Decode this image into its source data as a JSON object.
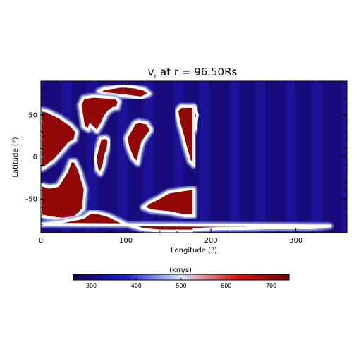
{
  "chart_data": {
    "type": "heatmap",
    "title_main": "v",
    "title_sub": "r",
    "title_rest": " at r = 96.50Rs",
    "xlabel": "Longitude (°)",
    "ylabel": "Latitude (°)",
    "xlim": [
      0,
      360
    ],
    "ylim": [
      -90,
      90
    ],
    "xticks": [
      0,
      100,
      200,
      300
    ],
    "yticks": [
      -50,
      0,
      50
    ],
    "colorbar": {
      "label": "(km/s)",
      "range": [
        260,
        740
      ],
      "ticks": [
        300,
        400,
        500,
        600,
        700
      ],
      "colors": [
        "#14004e",
        "#1f1fcd",
        "#dde6fb",
        "#d31818",
        "#730000"
      ]
    },
    "grid": false,
    "background_speed_kms": 310,
    "fast_wind_speed_kms": 700,
    "fast_wind_regions": [
      {
        "name": "polar-top-arc",
        "outline_lonlat": [
          [
            68,
            78
          ],
          [
            75,
            81
          ],
          [
            95,
            84
          ],
          [
            110,
            83
          ],
          [
            122,
            80
          ],
          [
            128,
            75
          ],
          [
            118,
            70
          ],
          [
            95,
            73
          ],
          [
            75,
            75
          ]
        ]
      },
      {
        "name": "central-north",
        "outline_lonlat": [
          [
            50,
            70
          ],
          [
            62,
            72
          ],
          [
            88,
            70
          ],
          [
            92,
            66
          ],
          [
            90,
            58
          ],
          [
            86,
            58
          ],
          [
            80,
            54
          ],
          [
            76,
            49
          ],
          [
            72,
            40
          ],
          [
            66,
            30
          ],
          [
            58,
            38
          ],
          [
            56,
            32
          ],
          [
            50,
            36
          ],
          [
            48,
            50
          ],
          [
            46,
            62
          ]
        ]
      },
      {
        "name": "left-north",
        "outline_lonlat": [
          [
            0,
            56
          ],
          [
            8,
            54
          ],
          [
            22,
            47
          ],
          [
            35,
            38
          ],
          [
            42,
            30
          ],
          [
            40,
            20
          ],
          [
            33,
            16
          ],
          [
            25,
            6
          ],
          [
            15,
            -5
          ],
          [
            5,
            -12
          ],
          [
            0,
            -15
          ]
        ]
      },
      {
        "name": "left-south",
        "outline_lonlat": [
          [
            0,
            -33
          ],
          [
            10,
            -36
          ],
          [
            20,
            -34
          ],
          [
            30,
            -18
          ],
          [
            35,
            -5
          ],
          [
            40,
            -5
          ],
          [
            45,
            -15
          ],
          [
            52,
            -38
          ],
          [
            50,
            -62
          ],
          [
            40,
            -72
          ],
          [
            25,
            -74
          ],
          [
            10,
            -72
          ],
          [
            0,
            -70
          ]
        ]
      },
      {
        "name": "center-small",
        "outline_lonlat": [
          [
            70,
            22
          ],
          [
            76,
            23
          ],
          [
            80,
            20
          ],
          [
            79,
            10
          ],
          [
            76,
            2
          ],
          [
            74,
            -10
          ],
          [
            70,
            -20
          ],
          [
            66,
            -15
          ],
          [
            64,
            -2
          ],
          [
            66,
            8
          ]
        ]
      },
      {
        "name": "right-upper",
        "outline_lonlat": [
          [
            110,
            40
          ],
          [
            115,
            42
          ],
          [
            125,
            40
          ],
          [
            130,
            32
          ],
          [
            125,
            25
          ],
          [
            120,
            18
          ],
          [
            117,
            8
          ],
          [
            114,
            -8
          ],
          [
            108,
            -2
          ],
          [
            103,
            10
          ],
          [
            100,
            22
          ]
        ]
      },
      {
        "name": "right-edge-north",
        "outline_lonlat": [
          [
            160,
            55
          ],
          [
            165,
            60
          ],
          [
            180,
            60
          ],
          [
            180,
            -10
          ],
          [
            175,
            -5
          ],
          [
            170,
            12
          ],
          [
            166,
            28
          ],
          [
            162,
            42
          ]
        ]
      },
      {
        "name": "right-edge-north-wrap",
        "outline_lonlat": [
          [
            -180,
            60
          ],
          [
            -178,
            58
          ],
          [
            -176,
            50
          ],
          [
            -178,
            35
          ],
          [
            -180,
            30
          ]
        ]
      },
      {
        "name": "bottom-right-band",
        "outline_lonlat": [
          [
            120,
            -60
          ],
          [
            128,
            -54
          ],
          [
            140,
            -48
          ],
          [
            150,
            -42
          ],
          [
            162,
            -40
          ],
          [
            175,
            -38
          ],
          [
            180,
            -38
          ],
          [
            180,
            -70
          ],
          [
            170,
            -70
          ],
          [
            150,
            -66
          ],
          [
            130,
            -64
          ]
        ]
      },
      {
        "name": "bottom-wide-band",
        "outline_lonlat": [
          [
            -180,
            -86
          ],
          [
            -150,
            -85
          ],
          [
            -120,
            -85
          ],
          [
            -90,
            -84
          ],
          [
            -60,
            -84
          ],
          [
            -40,
            -84
          ],
          [
            -20,
            -82
          ],
          [
            0,
            -80
          ],
          [
            20,
            -78
          ],
          [
            50,
            -72
          ],
          [
            58,
            -66
          ],
          [
            66,
            -66
          ],
          [
            80,
            -70
          ],
          [
            100,
            -80
          ],
          [
            120,
            -86
          ],
          [
            140,
            -88
          ],
          [
            180,
            -88
          ],
          [
            180,
            -90
          ],
          [
            -180,
            -90
          ]
        ]
      }
    ]
  }
}
